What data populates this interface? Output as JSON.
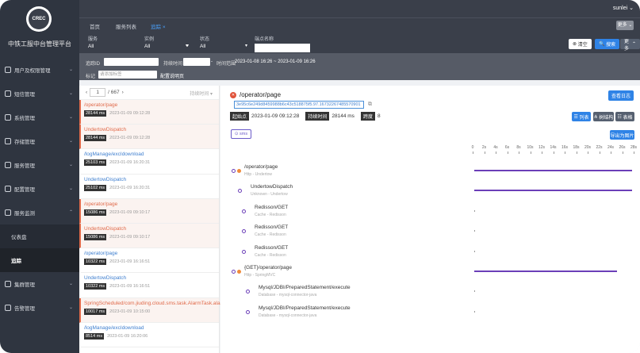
{
  "app": {
    "brand": "中铁工服中台管理平台",
    "logo_text": "CREC",
    "user": "sunlei"
  },
  "sidebar": {
    "items": [
      {
        "label": "用户及权限管理"
      },
      {
        "label": "短信管理"
      },
      {
        "label": "系统管理"
      },
      {
        "label": "存储管理"
      },
      {
        "label": "服务管理"
      },
      {
        "label": "配置管理"
      },
      {
        "label": "服务监测"
      }
    ],
    "subitems": [
      {
        "label": "仪表盘"
      },
      {
        "label": "追踪"
      }
    ],
    "items_after": [
      {
        "label": "集群管理"
      },
      {
        "label": "告警管理"
      }
    ]
  },
  "tabs": [
    {
      "label": "首页"
    },
    {
      "label": "服务列表"
    },
    {
      "label": "追踪"
    }
  ],
  "top_more": "更多",
  "filter": {
    "service": {
      "label": "服务",
      "value": "All"
    },
    "instance": {
      "label": "实例",
      "value": "All"
    },
    "status": {
      "label": "状态",
      "value": "All"
    },
    "endpoint": {
      "label": "端点名称",
      "value": ""
    },
    "clear": "清空",
    "search": "搜索",
    "more": "更多"
  },
  "row2": {
    "trace_id_label": "追踪ID",
    "duration_label": "持续时间",
    "time_range_label": "时间范围",
    "time_range": "2023-01-08 16:26 ~ 2023-01-09 16:26",
    "tag_label": "标记",
    "tag_placeholder": "请添加标签",
    "tag_hint": "配置说明页"
  },
  "pager": {
    "page": "1",
    "total": "/ 667",
    "sort": "持续时间"
  },
  "traces": [
    {
      "name": "/operator/page",
      "ms": "28144 ms",
      "time": "2023-01-09 09:12:28",
      "err": true
    },
    {
      "name": "UndertowDispatch",
      "ms": "28144 ms",
      "time": "2023-01-09 09:12:28",
      "err": true
    },
    {
      "name": "/logManage/excIdownload",
      "ms": "25103 ms",
      "time": "2023-01-09 16:20:31",
      "err": false
    },
    {
      "name": "UndertowDispatch",
      "ms": "25102 ms",
      "time": "2023-01-09 16:20:31",
      "err": false
    },
    {
      "name": "/operator/page",
      "ms": "15086 ms",
      "time": "2023-01-09 09:10:17",
      "err": true
    },
    {
      "name": "UndertowDispatch",
      "ms": "15086 ms",
      "time": "2023-01-09 09:10:17",
      "err": true
    },
    {
      "name": "/operator/page",
      "ms": "10322 ms",
      "time": "2023-01-09 16:16:51",
      "err": false
    },
    {
      "name": "UndertowDispatch",
      "ms": "10322 ms",
      "time": "2023-01-09 16:16:51",
      "err": false
    },
    {
      "name": "SpringScheduled/com.jiuding.cloud.sms.task.AlarmTask.alarm",
      "ms": "10017 ms",
      "time": "2023-01-09 10:15:00",
      "err": true
    },
    {
      "name": "/logManage/excIdownload",
      "ms": "8514 ms",
      "time": "2023-01-09 16:20:06",
      "err": false
    }
  ],
  "detail": {
    "title": "/operator/page",
    "view_log": "查看日志",
    "trace_id": "3e95c6e249d8459988b6c43c518875f5.97.16732267485570901",
    "start_label": "起始点",
    "start": "2023-01-09 09:12:28",
    "duration_label": "持续时间",
    "duration": "28144 ms",
    "depth_label": "跨度",
    "depth": "8",
    "view_list": "列表",
    "view_tree": "树结构",
    "view_table": "表格",
    "export": "导出为图片",
    "sms_tag": "sms",
    "axis": [
      "0",
      "2s",
      "4s",
      "6s",
      "8s",
      "10s",
      "12s",
      "14s",
      "16s",
      "18s",
      "20s",
      "22s",
      "24s",
      "26s",
      "28s"
    ],
    "spans": [
      {
        "name": "/operator/page",
        "sub": "Http - Undertow",
        "start_s": 0,
        "dur_s": 28.1,
        "err": true
      },
      {
        "name": "UndertowDispatch",
        "sub": "Unknown - Undertow",
        "start_s": 0,
        "dur_s": 28.1,
        "err": false
      },
      {
        "name": "Redisson/GET",
        "sub": "Cache - Redisson",
        "start_s": 0,
        "dur_s": 0.05,
        "err": false
      },
      {
        "name": "Redisson/GET",
        "sub": "Cache - Redisson",
        "start_s": 0,
        "dur_s": 0.05,
        "err": false
      },
      {
        "name": "Redisson/GET",
        "sub": "Cache - Redisson",
        "start_s": 0,
        "dur_s": 0.05,
        "err": false
      },
      {
        "name": "{GET}/operator/page",
        "sub": "Http - SpringMVC",
        "start_s": 0,
        "dur_s": 25.4,
        "err": true
      },
      {
        "name": "Mysql/JDBI/PreparedStatement/execute",
        "sub": "Database - mysql-connector-java",
        "start_s": 0,
        "dur_s": 0.05,
        "err": false
      },
      {
        "name": "Mysql/JDBI/PreparedStatement/execute",
        "sub": "Database - mysql-connector-java",
        "start_s": 0,
        "dur_s": 0.05,
        "err": false
      }
    ]
  }
}
